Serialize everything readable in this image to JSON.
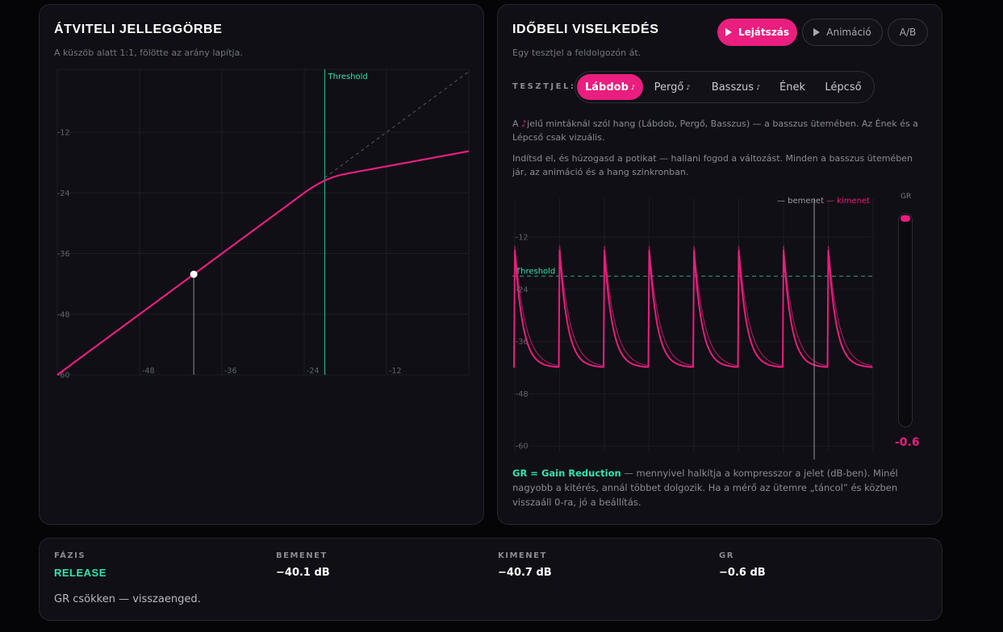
{
  "left": {
    "title": "ÁTVITELI JELLEGGÖRBE",
    "subtitle": "A küszöb alatt 1:1, fölötte az arány lapítja.",
    "threshold_label": "Threshold",
    "threshold_db": -21,
    "ratio": 4,
    "current_input_db": -40.1,
    "colors": {
      "curve": "#e91e7e",
      "threshold": "#2ee6b0",
      "grid": "#22222a"
    },
    "y_ticks": [
      "-12",
      "-24",
      "-36",
      "-48",
      "-60"
    ],
    "x_ticks": [
      "-48",
      "-36",
      "-24",
      "-12"
    ]
  },
  "right": {
    "title": "IDŐBELI VISELKEDÉS",
    "subtitle": "Egy tesztjel a feldolgozón át.",
    "buttons": {
      "play": "Lejátszás",
      "animation": "Animáció",
      "ab": "A/B"
    },
    "test_signal_label": "TESZTJEL:",
    "tabs": [
      {
        "label": "Lábdob",
        "has_sound": true,
        "active": true
      },
      {
        "label": "Pergő",
        "has_sound": true,
        "active": false
      },
      {
        "label": "Basszus",
        "has_sound": true,
        "active": false
      },
      {
        "label": "Ének",
        "has_sound": false,
        "active": false
      },
      {
        "label": "Lépcső",
        "has_sound": false,
        "active": false
      }
    ],
    "sound_marker": "♪",
    "info1_pre": "A ",
    "info1_note": "♪",
    "info1_post": "jelű mintáknál szól hang (Lábdob, Pergő, Basszus) — a basszus ütemében. Az Ének és a Lépcső csak vizuális.",
    "info2": "Indítsd el, és húzogasd a potikat — hallani fogod a változást. Minden a basszus ütemében jár, az animáció és a hang szinkronban.",
    "legend_input": "— bemenet",
    "legend_output": "— kimenet",
    "threshold_label": "Threshold",
    "y_ticks": [
      "-12",
      "-24",
      "-36",
      "-48",
      "-60"
    ],
    "meter_label": "GR",
    "meter_value": "-0.6",
    "gr_level": 0.03,
    "footer_strong": "GR = Gain Reduction",
    "footer_text": " — mennyivel halkítja a kompresszor a jelet (dB-ben). Minél nagyobb a kitérés, annál többet dolgozik. Ha a mérő az ütemre „táncol” és közben visszaáll 0-ra, jó a beállítás."
  },
  "status": {
    "phase_label": "FÁZIS",
    "phase_value": "RELEASE",
    "input_label": "BEMENET",
    "input_value": "−40.1 dB",
    "output_label": "KIMENET",
    "output_value": "−40.7 dB",
    "gr_label": "GR",
    "gr_value": "−0.6 dB",
    "description": "GR csökken — visszaenged."
  }
}
